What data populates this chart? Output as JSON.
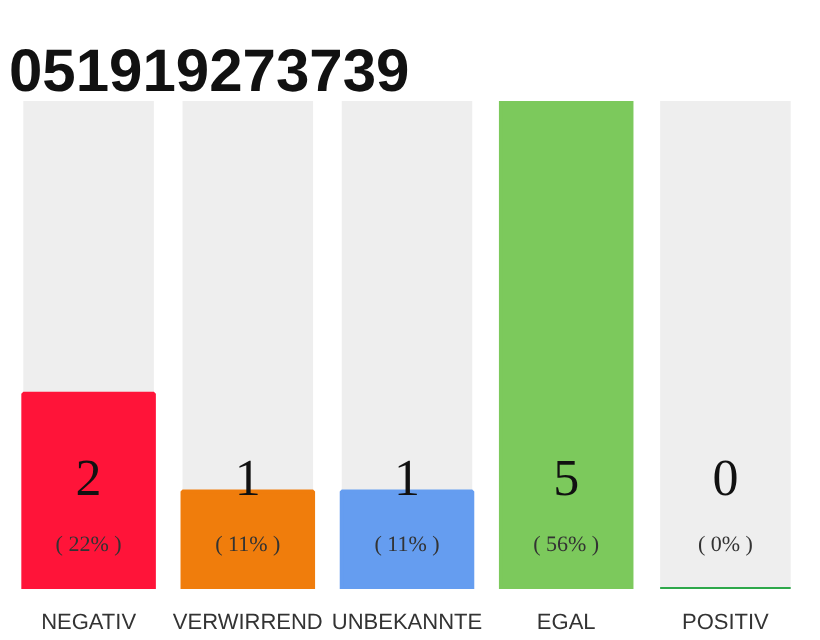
{
  "chart_data": {
    "type": "bar",
    "title": "051919273739",
    "categories": [
      "NEGATIV",
      "VERWIRREND",
      "UNBEKANNTE",
      "EGAL",
      "POSITIV"
    ],
    "values": [
      2,
      1,
      1,
      5,
      0
    ],
    "colors": [
      "#ff1439",
      "#f07d0c",
      "#659df0",
      "#7cc95c",
      "#2ea84a"
    ],
    "data_labels": true,
    "annotations": [
      "( 22% )",
      "( 11% )",
      "( 11% )",
      "( 56% )",
      "( 0% )"
    ],
    "grid": false
  }
}
